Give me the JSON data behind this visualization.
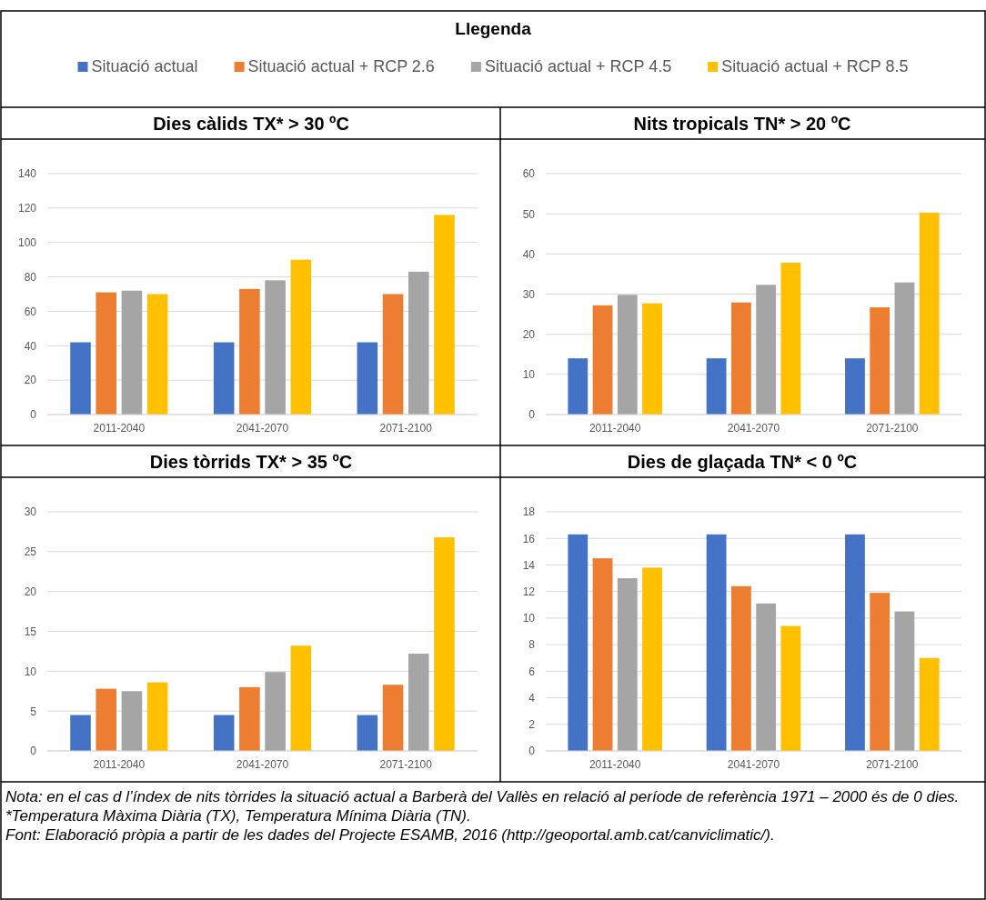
{
  "chart_data": [
    {
      "type": "bar",
      "title": "Dies càlids TX* > 30 ºC",
      "legend_title": "Llegenda",
      "legend": "top",
      "grid": "y",
      "categories": [
        "2011-2040",
        "2041-2070",
        "2071-2100"
      ],
      "ylim": [
        0,
        140
      ],
      "yticks": [
        0,
        20,
        40,
        60,
        80,
        100,
        120,
        140
      ],
      "series": [
        {
          "name": "Situació actual",
          "color": "#4472c4",
          "values": [
            42,
            42,
            42
          ]
        },
        {
          "name": "Situació actual + RCP 2.6",
          "color": "#ed7d31",
          "values": [
            71,
            73,
            70
          ]
        },
        {
          "name": "Situació actual + RCP 4.5",
          "color": "#a5a5a5",
          "values": [
            72,
            78,
            83
          ]
        },
        {
          "name": "Situació actual + RCP 8.5",
          "color": "#ffc000",
          "values": [
            70,
            90,
            116
          ]
        }
      ]
    },
    {
      "type": "bar",
      "title": "Nits tropicals TN* > 20 ºC",
      "grid": "y",
      "categories": [
        "2011-2040",
        "2041-2070",
        "2071-2100"
      ],
      "ylim": [
        0,
        60
      ],
      "yticks": [
        0,
        10,
        20,
        30,
        40,
        50,
        60
      ],
      "series": [
        {
          "color": "#4472c4",
          "values": [
            14,
            14,
            14
          ]
        },
        {
          "color": "#ed7d31",
          "values": [
            27.2,
            27.9,
            26.7
          ]
        },
        {
          "color": "#a5a5a5",
          "values": [
            29.8,
            32.3,
            32.9
          ]
        },
        {
          "color": "#ffc000",
          "values": [
            27.7,
            37.8,
            50.3
          ]
        }
      ]
    },
    {
      "type": "bar",
      "title": "Dies tòrrids TX* > 35 ºC",
      "grid": "y",
      "categories": [
        "2011-2040",
        "2041-2070",
        "2071-2100"
      ],
      "ylim": [
        0,
        30
      ],
      "yticks": [
        0,
        5,
        10,
        15,
        20,
        25,
        30
      ],
      "series": [
        {
          "color": "#4472c4",
          "values": [
            4.5,
            4.5,
            4.5
          ]
        },
        {
          "color": "#ed7d31",
          "values": [
            7.8,
            8.0,
            8.3
          ]
        },
        {
          "color": "#a5a5a5",
          "values": [
            7.5,
            9.9,
            12.2
          ]
        },
        {
          "color": "#ffc000",
          "values": [
            8.6,
            13.2,
            26.8
          ]
        }
      ]
    },
    {
      "type": "bar",
      "title": "Dies de glaçada TN* < 0 ºC",
      "grid": "y",
      "categories": [
        "2011-2040",
        "2041-2070",
        "2071-2100"
      ],
      "ylim": [
        0,
        18
      ],
      "yticks": [
        0,
        2,
        4,
        6,
        8,
        10,
        12,
        14,
        16,
        18
      ],
      "series": [
        {
          "color": "#4472c4",
          "values": [
            16.3,
            16.3,
            16.3
          ]
        },
        {
          "color": "#ed7d31",
          "values": [
            14.5,
            12.4,
            11.9
          ]
        },
        {
          "color": "#a5a5a5",
          "values": [
            13.0,
            11.1,
            10.5
          ]
        },
        {
          "color": "#ffc000",
          "values": [
            13.8,
            9.4,
            7.0
          ]
        }
      ],
      "annotations": [
        "Nota: en el cas d l’índex de nits tòrrides la situació actual a Barberà del Vallès en relació al període de referència 1971 – 2000 és de 0 dies.",
        "*Temperatura Màxima Diària (TX), Temperatura Mínima Diària (TN).",
        "Font: Elaboració pròpia a partir de les dades del Projecte ESAMB, 2016 (http://geoportal.amb.cat/canviclimatic/)."
      ]
    }
  ]
}
